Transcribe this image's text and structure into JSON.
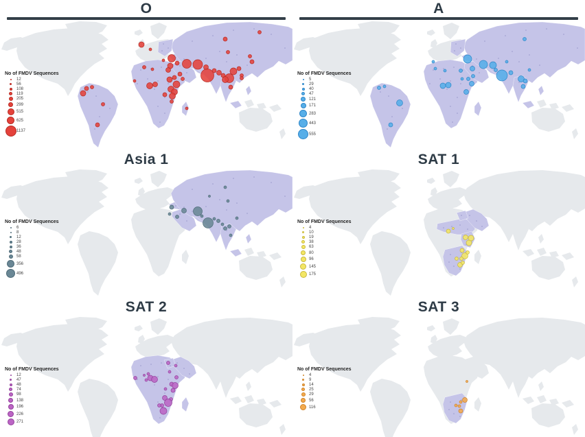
{
  "figure": {
    "legend_title": "No of FMDV Sequences",
    "map_colors": {
      "ocean": "#ffffff",
      "land": "#e6e9ec",
      "highlight": "#c5c4e8",
      "highlight_dot": "#9a99cc",
      "title_bar": "#333f48",
      "title_text": "#2e3b46"
    },
    "panels": [
      {
        "id": "O",
        "title": "O",
        "color": "#e4423b",
        "stroke": "#b72c24",
        "legend_values": [
          "12",
          "56",
          "108",
          "119",
          "205",
          "299",
          "515",
          "625",
          "1137"
        ],
        "legend_radii": [
          1,
          1.5,
          2,
          2.5,
          3,
          3.5,
          5,
          5.5,
          8
        ],
        "regions": [
          "sa",
          "af",
          "me",
          "as",
          "ee"
        ],
        "bubbles": [
          [
            206,
            35,
            4
          ],
          [
            219,
            42,
            2
          ],
          [
            250,
            55,
            5.5
          ],
          [
            238,
            58,
            2
          ],
          [
            248,
            66,
            4
          ],
          [
            258,
            62,
            3
          ],
          [
            272,
            63,
            6.5
          ],
          [
            288,
            64,
            7
          ],
          [
            300,
            68,
            3.5
          ],
          [
            328,
            27,
            3
          ],
          [
            332,
            46,
            2.5
          ],
          [
            378,
            17,
            2.5
          ],
          [
            302,
            80,
            9.5
          ],
          [
            312,
            73,
            3
          ],
          [
            319,
            76,
            3.5
          ],
          [
            325,
            80,
            3
          ],
          [
            340,
            74,
            5
          ],
          [
            348,
            70,
            3
          ],
          [
            352,
            80,
            2.5
          ],
          [
            364,
            52,
            2.5
          ],
          [
            367,
            60,
            3
          ],
          [
            334,
            84,
            6.5
          ],
          [
            328,
            86,
            4.5
          ],
          [
            336,
            97,
            3
          ],
          [
            352,
            84,
            2.5
          ],
          [
            245,
            72,
            3.5
          ],
          [
            262,
            78,
            3
          ],
          [
            266,
            85,
            2.5
          ],
          [
            210,
            68,
            2.5
          ],
          [
            222,
            71,
            2
          ],
          [
            196,
            88,
            2
          ],
          [
            218,
            95,
            4.5
          ],
          [
            226,
            93,
            3.5
          ],
          [
            247,
            86,
            4
          ],
          [
            254,
            83,
            3
          ],
          [
            257,
            93,
            5
          ],
          [
            249,
            100,
            4.5
          ],
          [
            254,
            104,
            4.5
          ],
          [
            251,
            110,
            4.5
          ],
          [
            240,
            108,
            3
          ],
          [
            250,
            118,
            2.5
          ],
          [
            126,
            99,
            3
          ],
          [
            121,
            106,
            4
          ],
          [
            134,
            97,
            2.5
          ],
          [
            150,
            122,
            2.5
          ],
          [
            142,
            152,
            3
          ],
          [
            272,
            128,
            2
          ]
        ]
      },
      {
        "id": "A",
        "title": "A",
        "color": "#57aee8",
        "stroke": "#2e86c8",
        "legend_values": [
          "5",
          "29",
          "40",
          "47",
          "121",
          "171",
          "283",
          "443",
          "555"
        ],
        "legend_radii": [
          1,
          1.5,
          2,
          2.5,
          3.5,
          4,
          5.5,
          6.5,
          7.5
        ],
        "regions": [
          "sa",
          "af",
          "me",
          "as",
          "ee"
        ],
        "bubbles": [
          [
            255,
            56,
            6
          ],
          [
            278,
            64,
            6
          ],
          [
            292,
            65,
            5
          ],
          [
            296,
            72,
            2.5
          ],
          [
            305,
            80,
            8
          ],
          [
            318,
            76,
            3
          ],
          [
            338,
            27,
            2.5
          ],
          [
            345,
            72,
            2
          ],
          [
            333,
            85,
            4.5
          ],
          [
            339,
            88,
            3
          ],
          [
            336,
            96,
            3
          ],
          [
            262,
            70,
            3.5
          ],
          [
            245,
            73,
            2.5
          ],
          [
            263,
            81,
            2.5
          ],
          [
            208,
            70,
            2
          ],
          [
            222,
            73,
            2
          ],
          [
            227,
            94,
            4
          ],
          [
            219,
            95,
            4
          ],
          [
            261,
            92,
            3.5
          ],
          [
            256,
            85,
            2.5
          ],
          [
            253,
            104,
            3.5
          ],
          [
            156,
            120,
            4.5
          ],
          [
            143,
            152,
            3
          ],
          [
            126,
            98,
            2.5
          ],
          [
            134,
            96,
            2
          ],
          [
            247,
            85,
            2
          ],
          [
            312,
            60,
            2
          ],
          [
            205,
            60,
            2
          ]
        ]
      },
      {
        "id": "Asia1",
        "title": "Asia 1",
        "color": "#6a8795",
        "stroke": "#4e6b78",
        "legend_values": [
          "6",
          "8",
          "12",
          "28",
          "36",
          "48",
          "58",
          "356",
          "496"
        ],
        "legend_radii": [
          1,
          1,
          1.5,
          2,
          2,
          2.5,
          3,
          5.5,
          6.5
        ],
        "regions": [
          "me",
          "as"
        ],
        "bubbles": [
          [
            288,
            62,
            6.5
          ],
          [
            303,
            79,
            7.5
          ],
          [
            250,
            56,
            3
          ],
          [
            268,
            61,
            3.5
          ],
          [
            258,
            70,
            2.5
          ],
          [
            247,
            66,
            2
          ],
          [
            328,
            27,
            2
          ],
          [
            332,
            47,
            2
          ],
          [
            345,
            72,
            2
          ],
          [
            312,
            73,
            2
          ],
          [
            318,
            76,
            2.5
          ],
          [
            324,
            81,
            2
          ],
          [
            328,
            87,
            2.5
          ],
          [
            334,
            84,
            2.5
          ],
          [
            336,
            97,
            2
          ],
          [
            294,
            69,
            2
          ],
          [
            305,
            40,
            1.5
          ]
        ]
      },
      {
        "id": "SAT1",
        "title": "SAT 1",
        "color": "#f3e664",
        "stroke": "#c9b93e",
        "legend_values": [
          "4",
          "10",
          "19",
          "38",
          "63",
          "80",
          "96",
          "145",
          "175"
        ],
        "legend_radii": [
          1,
          1.5,
          2,
          2.5,
          3,
          3.5,
          4,
          4.5,
          5
        ],
        "regions": [
          "af_sahel",
          "af_east",
          "af_south",
          "arabia"
        ],
        "bubbles": [
          [
            227,
            91,
            3
          ],
          [
            252,
            100,
            3.5
          ],
          [
            260,
            101,
            4
          ],
          [
            257,
            108,
            4
          ],
          [
            247,
            119,
            3
          ],
          [
            251,
            127,
            4.5
          ],
          [
            255,
            122,
            2.5
          ],
          [
            246,
            131,
            2.5
          ],
          [
            239,
            131,
            2.5
          ],
          [
            244,
            140,
            3.5
          ],
          [
            248,
            137,
            2.5
          ],
          [
            234,
            87,
            1.5
          ]
        ]
      },
      {
        "id": "SAT2",
        "title": "SAT 2",
        "color": "#bb65c4",
        "stroke": "#93419c",
        "legend_values": [
          "12",
          "47",
          "48",
          "74",
          "98",
          "138",
          "196",
          "226",
          "271"
        ],
        "legend_radii": [
          1,
          1.5,
          2,
          2.5,
          3,
          3.5,
          4,
          4.5,
          5
        ],
        "regions": [
          "af",
          "arabia"
        ],
        "bubbles": [
          [
            245,
            68,
            2.5
          ],
          [
            256,
            72,
            2
          ],
          [
            197,
            90,
            2.5
          ],
          [
            210,
            86,
            1.5
          ],
          [
            216,
            84,
            2
          ],
          [
            219,
            90,
            4
          ],
          [
            225,
            92,
            4.5
          ],
          [
            213,
            93,
            2
          ],
          [
            247,
            81,
            2
          ],
          [
            257,
            89,
            2.5
          ],
          [
            250,
            99,
            3
          ],
          [
            255,
            101,
            4.5
          ],
          [
            252,
            108,
            3
          ],
          [
            241,
            106,
            2
          ],
          [
            240,
            119,
            3.5
          ],
          [
            249,
            121,
            2.5
          ],
          [
            245,
            126,
            5.5
          ],
          [
            236,
            130,
            2.5
          ],
          [
            232,
            130,
            2.5
          ],
          [
            238,
            138,
            5
          ]
        ]
      },
      {
        "id": "SAT3",
        "title": "SAT 3",
        "color": "#f3aa4e",
        "stroke": "#cf8327",
        "legend_values": [
          "4",
          "9",
          "14",
          "25",
          "29",
          "56",
          "116"
        ],
        "legend_radii": [
          1,
          1.5,
          2,
          2.5,
          3,
          3.5,
          4.5
        ],
        "regions": [
          "af_south"
        ],
        "bubbles": [
          [
            254,
            95,
            1.5
          ],
          [
            251,
            122,
            3.5
          ],
          [
            245,
            125,
            2
          ],
          [
            238,
            130,
            2
          ],
          [
            243,
            131,
            2
          ],
          [
            245,
            138,
            3
          ]
        ]
      }
    ]
  }
}
